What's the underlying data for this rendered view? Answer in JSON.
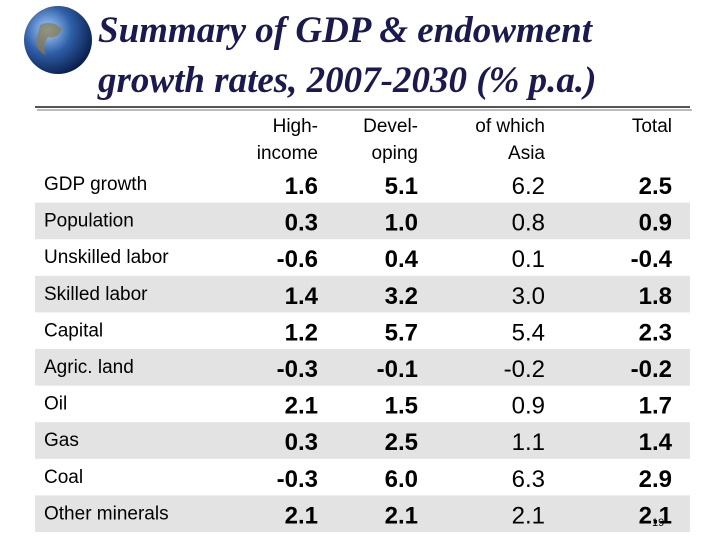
{
  "header": {
    "title": [
      "Summary of GDP & endowment",
      "growth rates, 2007-2030 (% p.a.)"
    ]
  },
  "table": {
    "columns": [
      [
        "High-",
        "income"
      ],
      [
        "Devel-",
        "oping"
      ],
      [
        "of which",
        "Asia"
      ],
      [
        "Total"
      ]
    ],
    "rows": [
      [
        "GDP growth",
        "1.6",
        "5.1",
        "6.2",
        "2.5"
      ],
      [
        "Population",
        "0.3",
        "1.0",
        "0.8",
        "0.9"
      ],
      [
        "Unskilled labor",
        "-0.6",
        "0.4",
        "0.1",
        "-0.4"
      ],
      [
        "Skilled labor",
        "1.4",
        "3.2",
        "3.0",
        "1.8"
      ],
      [
        "Capital",
        "1.2",
        "5.7",
        "5.4",
        "2.3"
      ],
      [
        "Agric. land",
        "-0.3",
        "-0.1",
        "-0.2",
        "-0.2"
      ],
      [
        "Oil",
        "2.1",
        "1.5",
        "0.9",
        "1.7"
      ],
      [
        "Gas",
        "0.3",
        "2.5",
        "1.1",
        "1.4"
      ],
      [
        "Coal",
        "-0.3",
        "6.0",
        "6.3",
        "2.9"
      ],
      [
        "Other minerals",
        "2.1",
        "2.1",
        "2.1",
        "2.1"
      ]
    ]
  },
  "footer": {
    "page_number": "19"
  }
}
